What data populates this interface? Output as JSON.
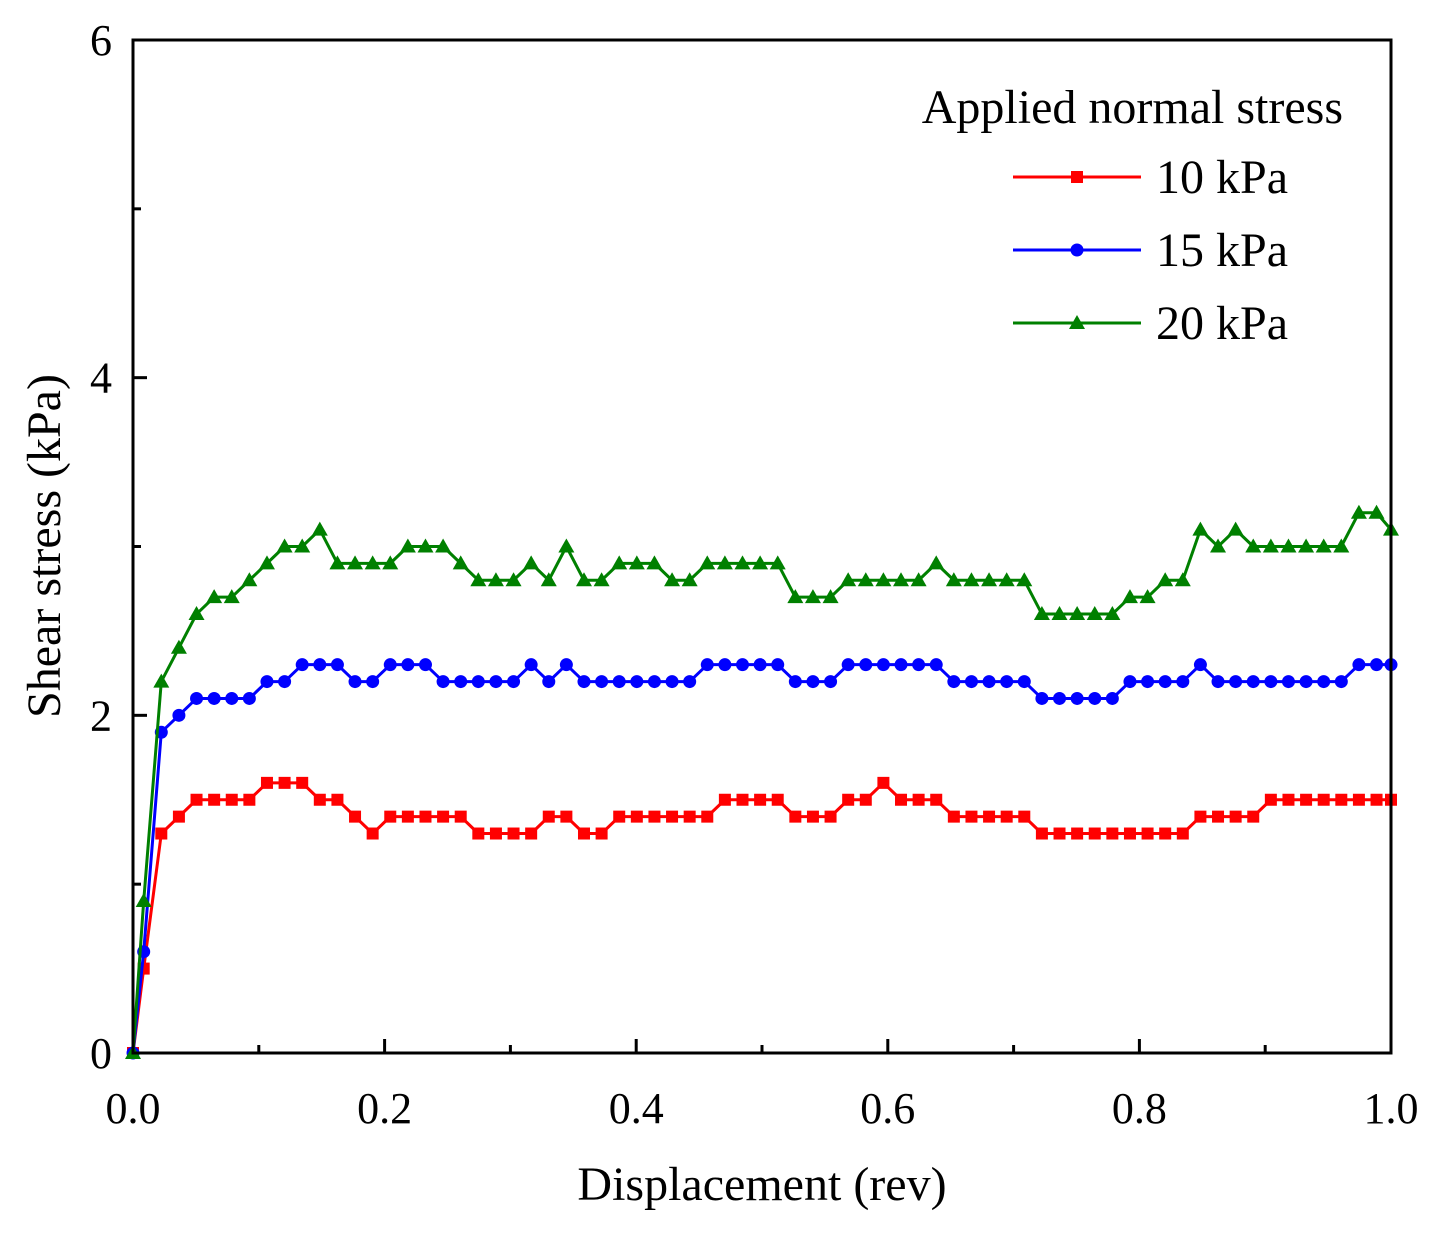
{
  "chart_data": {
    "type": "line",
    "xlabel": "Displacement (rev)",
    "ylabel": "Shear stress (kPa)",
    "xlim": [
      0,
      1.0
    ],
    "ylim": [
      0,
      6
    ],
    "x_ticks": [
      0.0,
      0.2,
      0.4,
      0.6,
      0.8,
      1.0
    ],
    "x_tick_labels": [
      "0.0",
      "0.2",
      "0.4",
      "0.6",
      "0.8",
      "1.0"
    ],
    "y_ticks": [
      0,
      2,
      4,
      6
    ],
    "y_tick_labels": [
      "0",
      "2",
      "4",
      "6"
    ],
    "grid": false,
    "legend": {
      "title": "Applied normal stress",
      "placement": "top-right"
    },
    "series": [
      {
        "name": "10 kPa",
        "color": "#ff0000",
        "marker": "square",
        "x": [
          0.0,
          0.0085,
          0.0225,
          0.0365,
          0.0505,
          0.0645,
          0.0785,
          0.0925,
          0.1065,
          0.1205,
          0.1345,
          0.1485,
          0.1625,
          0.1765,
          0.1905,
          0.2045,
          0.2185,
          0.2325,
          0.2465,
          0.2605,
          0.2745,
          0.2885,
          0.3025,
          0.3165,
          0.3305,
          0.3445,
          0.3585,
          0.3725,
          0.3865,
          0.4005,
          0.4145,
          0.4285,
          0.4425,
          0.4565,
          0.4705,
          0.4845,
          0.4985,
          0.5125,
          0.5265,
          0.5405,
          0.5545,
          0.5685,
          0.5825,
          0.5965,
          0.6105,
          0.6245,
          0.6385,
          0.6525,
          0.6665,
          0.6805,
          0.6945,
          0.7085,
          0.7225,
          0.7365,
          0.7505,
          0.7645,
          0.7785,
          0.7925,
          0.8065,
          0.8205,
          0.8345,
          0.8485,
          0.8625,
          0.8765,
          0.8905,
          0.9045,
          0.9185,
          0.9325,
          0.9465,
          0.9605,
          0.9745,
          0.9885,
          1.0
        ],
        "y": [
          0,
          0.5,
          1.3,
          1.4,
          1.5,
          1.5,
          1.5,
          1.5,
          1.6,
          1.6,
          1.6,
          1.5,
          1.5,
          1.4,
          1.3,
          1.4,
          1.4,
          1.4,
          1.4,
          1.4,
          1.3,
          1.3,
          1.3,
          1.3,
          1.4,
          1.4,
          1.3,
          1.3,
          1.4,
          1.4,
          1.4,
          1.4,
          1.4,
          1.4,
          1.5,
          1.5,
          1.5,
          1.5,
          1.4,
          1.4,
          1.4,
          1.5,
          1.5,
          1.6,
          1.5,
          1.5,
          1.5,
          1.4,
          1.4,
          1.4,
          1.4,
          1.4,
          1.3,
          1.3,
          1.3,
          1.3,
          1.3,
          1.3,
          1.3,
          1.3,
          1.3,
          1.4,
          1.4,
          1.4,
          1.4,
          1.5,
          1.5,
          1.5,
          1.5,
          1.5,
          1.5,
          1.5,
          1.5
        ]
      },
      {
        "name": "15 kPa",
        "color": "#0000ff",
        "marker": "circle",
        "x": [
          0.0,
          0.0085,
          0.0225,
          0.0365,
          0.0505,
          0.0645,
          0.0785,
          0.0925,
          0.1065,
          0.1205,
          0.1345,
          0.1485,
          0.1625,
          0.1765,
          0.1905,
          0.2045,
          0.2185,
          0.2325,
          0.2465,
          0.2605,
          0.2745,
          0.2885,
          0.3025,
          0.3165,
          0.3305,
          0.3445,
          0.3585,
          0.3725,
          0.3865,
          0.4005,
          0.4145,
          0.4285,
          0.4425,
          0.4565,
          0.4705,
          0.4845,
          0.4985,
          0.5125,
          0.5265,
          0.5405,
          0.5545,
          0.5685,
          0.5825,
          0.5965,
          0.6105,
          0.6245,
          0.6385,
          0.6525,
          0.6665,
          0.6805,
          0.6945,
          0.7085,
          0.7225,
          0.7365,
          0.7505,
          0.7645,
          0.7785,
          0.7925,
          0.8065,
          0.8205,
          0.8345,
          0.8485,
          0.8625,
          0.8765,
          0.8905,
          0.9045,
          0.9185,
          0.9325,
          0.9465,
          0.9605,
          0.9745,
          0.9885,
          1.0
        ],
        "y": [
          0,
          0.6,
          1.9,
          2.0,
          2.1,
          2.1,
          2.1,
          2.1,
          2.2,
          2.2,
          2.3,
          2.3,
          2.3,
          2.2,
          2.2,
          2.3,
          2.3,
          2.3,
          2.2,
          2.2,
          2.2,
          2.2,
          2.2,
          2.3,
          2.2,
          2.3,
          2.2,
          2.2,
          2.2,
          2.2,
          2.2,
          2.2,
          2.2,
          2.3,
          2.3,
          2.3,
          2.3,
          2.3,
          2.2,
          2.2,
          2.2,
          2.3,
          2.3,
          2.3,
          2.3,
          2.3,
          2.3,
          2.2,
          2.2,
          2.2,
          2.2,
          2.2,
          2.1,
          2.1,
          2.1,
          2.1,
          2.1,
          2.2,
          2.2,
          2.2,
          2.2,
          2.3,
          2.2,
          2.2,
          2.2,
          2.2,
          2.2,
          2.2,
          2.2,
          2.2,
          2.3,
          2.3,
          2.3
        ]
      },
      {
        "name": "20 kPa",
        "color": "#008000",
        "marker": "triangle",
        "x": [
          0.0,
          0.0085,
          0.0225,
          0.0365,
          0.0505,
          0.0645,
          0.0785,
          0.0925,
          0.1065,
          0.1205,
          0.1345,
          0.1485,
          0.1625,
          0.1765,
          0.1905,
          0.2045,
          0.2185,
          0.2325,
          0.2465,
          0.2605,
          0.2745,
          0.2885,
          0.3025,
          0.3165,
          0.3305,
          0.3445,
          0.3585,
          0.3725,
          0.3865,
          0.4005,
          0.4145,
          0.4285,
          0.4425,
          0.4565,
          0.4705,
          0.4845,
          0.4985,
          0.5125,
          0.5265,
          0.5405,
          0.5545,
          0.5685,
          0.5825,
          0.5965,
          0.6105,
          0.6245,
          0.6385,
          0.6525,
          0.6665,
          0.6805,
          0.6945,
          0.7085,
          0.7225,
          0.7365,
          0.7505,
          0.7645,
          0.7785,
          0.7925,
          0.8065,
          0.8205,
          0.8345,
          0.8485,
          0.8625,
          0.8765,
          0.8905,
          0.9045,
          0.9185,
          0.9325,
          0.9465,
          0.9605,
          0.9745,
          0.9885,
          1.0
        ],
        "y": [
          0,
          0.9,
          2.2,
          2.4,
          2.6,
          2.7,
          2.7,
          2.8,
          2.9,
          3.0,
          3.0,
          3.1,
          2.9,
          2.9,
          2.9,
          2.9,
          3.0,
          3.0,
          3.0,
          2.9,
          2.8,
          2.8,
          2.8,
          2.9,
          2.8,
          3.0,
          2.8,
          2.8,
          2.9,
          2.9,
          2.9,
          2.8,
          2.8,
          2.9,
          2.9,
          2.9,
          2.9,
          2.9,
          2.7,
          2.7,
          2.7,
          2.8,
          2.8,
          2.8,
          2.8,
          2.8,
          2.9,
          2.8,
          2.8,
          2.8,
          2.8,
          2.8,
          2.6,
          2.6,
          2.6,
          2.6,
          2.6,
          2.7,
          2.7,
          2.8,
          2.8,
          3.1,
          3.0,
          3.1,
          3.0,
          3.0,
          3.0,
          3.0,
          3.0,
          3.0,
          3.2,
          3.2,
          3.1
        ]
      }
    ]
  }
}
